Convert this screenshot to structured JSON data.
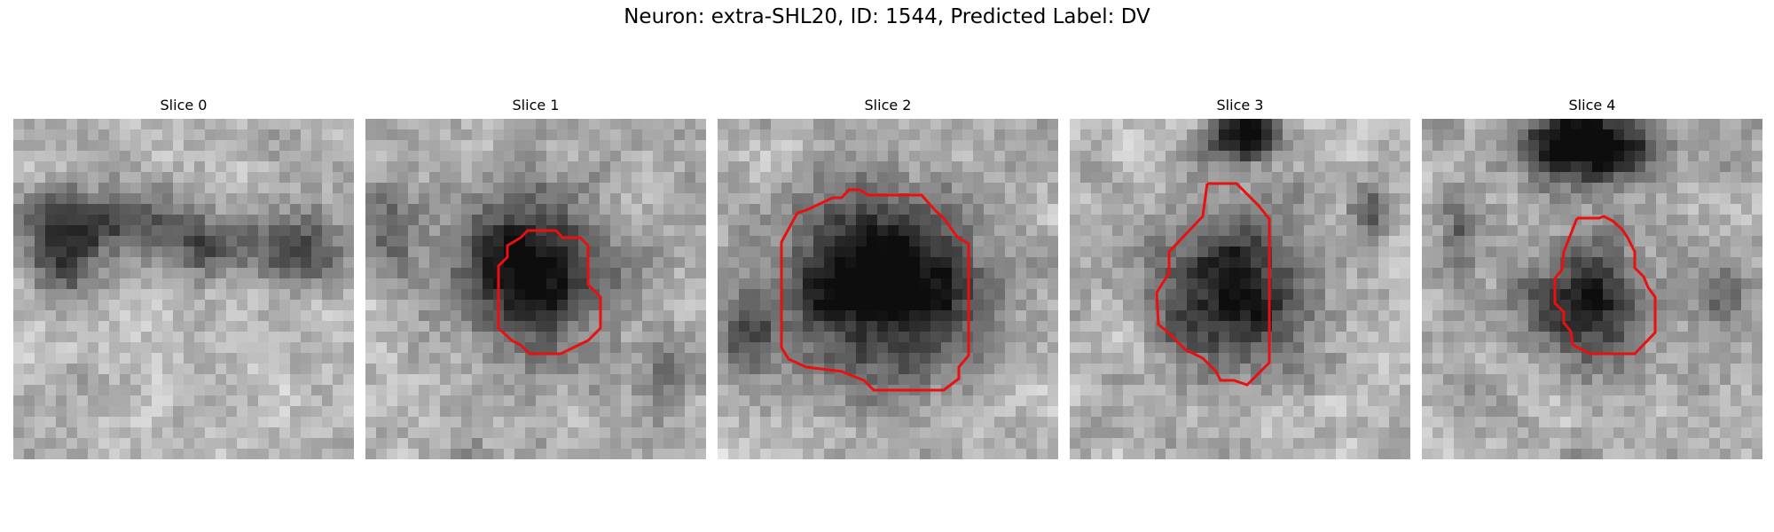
{
  "figure": {
    "title": "Neuron: extra-SHL20, ID: 1544, Predicted Label: DV",
    "contour_color": "#e81010",
    "slices": [
      {
        "label": "Slice 0",
        "has_contour": false
      },
      {
        "label": "Slice 1",
        "has_contour": true
      },
      {
        "label": "Slice 2",
        "has_contour": true
      },
      {
        "label": "Slice 3",
        "has_contour": true
      },
      {
        "label": "Slice 4",
        "has_contour": true
      }
    ]
  }
}
